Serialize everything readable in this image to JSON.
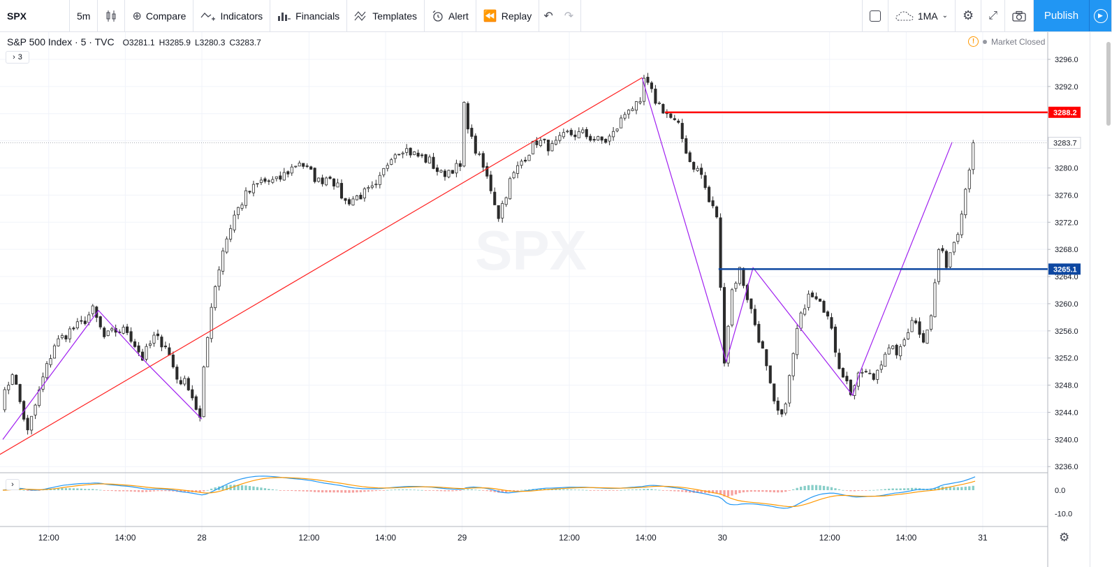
{
  "toolbar": {
    "symbol": "SPX",
    "interval": "5m",
    "compare": "Compare",
    "indicators": "Indicators",
    "financials": "Financials",
    "templates": "Templates",
    "alert": "Alert",
    "replay": "Replay",
    "layout_name": "1MA",
    "publish": "Publish"
  },
  "legend": {
    "title": "S&P 500 Index · 5 · TVC",
    "open": "O3281.1",
    "high": "H3285.9",
    "low": "L3280.3",
    "close": "C3283.7",
    "collapsed_count": "3"
  },
  "status": {
    "market": "Market Closed"
  },
  "colors": {
    "up": "#ffffff",
    "down": "#2b2b2b",
    "hline_red": "#ff0000",
    "hline_blue": "#0d47a1",
    "zigzag": "#a020f0",
    "trend": "#ff2020",
    "macd": "#2196f3",
    "signal": "#ff9800"
  },
  "price_axis": {
    "ticks": [
      "3296.0",
      "3292.0",
      "3288.0",
      "3284.0",
      "3280.0",
      "3276.0",
      "3272.0",
      "3268.0",
      "3264.0",
      "3260.0",
      "3256.0",
      "3252.0",
      "3248.0",
      "3244.0",
      "3240.0",
      "3236.0"
    ],
    "tick_values": [
      3296,
      3292,
      3288,
      3284,
      3280,
      3276,
      3272,
      3268,
      3264,
      3260,
      3256,
      3252,
      3248,
      3244,
      3240,
      3236
    ],
    "range": [
      3235.2,
      3299.6
    ],
    "labels": [
      {
        "text": "3288.2",
        "value": 3288.2,
        "style": "red"
      },
      {
        "text": "3283.7",
        "value": 3283.7,
        "style": "last"
      },
      {
        "text": "3265.1",
        "value": 3265.1,
        "style": "blue"
      }
    ]
  },
  "sub_axis": {
    "ticks": [
      "0.0",
      "-10.0"
    ],
    "tick_values": [
      0,
      -10
    ],
    "range": [
      -15,
      6
    ]
  },
  "time_axis": {
    "ticks": [
      "12:00",
      "14:00",
      "28",
      "12:00",
      "14:00",
      "29",
      "12:00",
      "14:00",
      "30",
      "12:00",
      "14:00",
      "31"
    ],
    "tick_bars": [
      12,
      32,
      52,
      80,
      100,
      120,
      148,
      168,
      188,
      216,
      236,
      256
    ]
  },
  "chart_data": {
    "type": "candlestick",
    "title": "S&P 500 Index · 5 · TVC",
    "ylim": [
      3235.2,
      3299.6
    ],
    "bars_visible": 254,
    "keypoints": [
      [
        0,
        3245
      ],
      [
        3,
        3250
      ],
      [
        7,
        3241
      ],
      [
        11,
        3249
      ],
      [
        14,
        3254
      ],
      [
        18,
        3256
      ],
      [
        21,
        3257
      ],
      [
        24,
        3259
      ],
      [
        27,
        3255
      ],
      [
        30,
        3256
      ],
      [
        33,
        3256
      ],
      [
        37,
        3252
      ],
      [
        40,
        3255
      ],
      [
        43,
        3254
      ],
      [
        46,
        3249
      ],
      [
        49,
        3248
      ],
      [
        52,
        3243
      ],
      [
        53,
        3250
      ],
      [
        55,
        3260
      ],
      [
        58,
        3268
      ],
      [
        61,
        3273
      ],
      [
        64,
        3276
      ],
      [
        68,
        3278
      ],
      [
        72,
        3278
      ],
      [
        78,
        3281
      ],
      [
        83,
        3278
      ],
      [
        86,
        3279
      ],
      [
        90,
        3275
      ],
      [
        94,
        3276
      ],
      [
        98,
        3277
      ],
      [
        102,
        3282
      ],
      [
        105,
        3283
      ],
      [
        108,
        3282
      ],
      [
        112,
        3281
      ],
      [
        115,
        3279
      ],
      [
        118,
        3280
      ],
      [
        120,
        3280
      ],
      [
        121,
        3289
      ],
      [
        123,
        3284
      ],
      [
        126,
        3280
      ],
      [
        128,
        3277
      ],
      [
        129,
        3275
      ],
      [
        130,
        3273
      ],
      [
        133,
        3278
      ],
      [
        136,
        3281
      ],
      [
        140,
        3284
      ],
      [
        144,
        3283
      ],
      [
        148,
        3285
      ],
      [
        152,
        3285
      ],
      [
        156,
        3284
      ],
      [
        158,
        3284
      ],
      [
        160,
        3285
      ],
      [
        164,
        3289
      ],
      [
        167,
        3289
      ],
      [
        168,
        3293
      ],
      [
        171,
        3290
      ],
      [
        174,
        3288
      ],
      [
        177,
        3286
      ],
      [
        180,
        3281
      ],
      [
        183,
        3279
      ],
      [
        185,
        3275
      ],
      [
        187,
        3273
      ],
      [
        188,
        3262
      ],
      [
        189,
        3252
      ],
      [
        191,
        3262
      ],
      [
        193,
        3265
      ],
      [
        196,
        3259
      ],
      [
        199,
        3253
      ],
      [
        202,
        3245
      ],
      [
        204,
        3243
      ],
      [
        206,
        3249
      ],
      [
        208,
        3256
      ],
      [
        211,
        3262
      ],
      [
        214,
        3261
      ],
      [
        216,
        3258
      ],
      [
        219,
        3251
      ],
      [
        222,
        3247
      ],
      [
        225,
        3250
      ],
      [
        228,
        3249
      ],
      [
        231,
        3253
      ],
      [
        235,
        3253
      ],
      [
        238,
        3258
      ],
      [
        241,
        3255
      ],
      [
        243,
        3258
      ],
      [
        245,
        3268
      ],
      [
        247,
        3266
      ],
      [
        250,
        3271
      ],
      [
        252,
        3277
      ],
      [
        254,
        3283.7
      ]
    ],
    "lines": {
      "hline_red": 3288.2,
      "hline_blue": 3265.1
    }
  }
}
